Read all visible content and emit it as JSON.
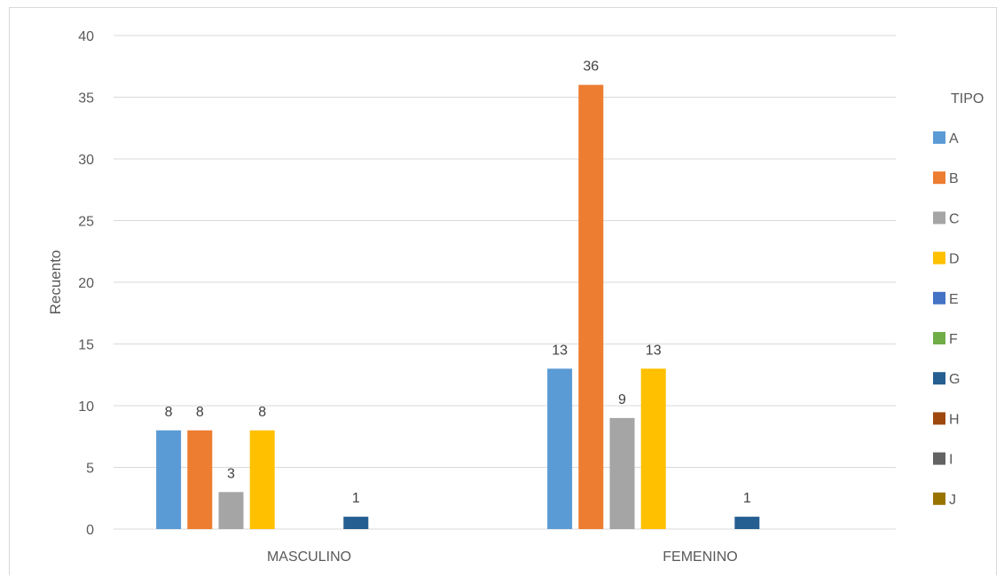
{
  "chart_data": {
    "type": "bar",
    "categories": [
      "MASCULINO",
      "FEMENINO"
    ],
    "ylabel": "Recuento",
    "xlabel": "",
    "ylim": [
      0,
      40
    ],
    "yticks": [
      0,
      5,
      10,
      15,
      20,
      25,
      30,
      35,
      40
    ],
    "grid": true,
    "legend": {
      "title": "TIPO",
      "placement": "right"
    },
    "series": [
      {
        "name": "A",
        "color": "#5b9bd5",
        "values": [
          8,
          13
        ]
      },
      {
        "name": "B",
        "color": "#ed7d31",
        "values": [
          8,
          36
        ]
      },
      {
        "name": "C",
        "color": "#a5a5a5",
        "values": [
          3,
          9
        ]
      },
      {
        "name": "D",
        "color": "#ffc000",
        "values": [
          8,
          13
        ]
      },
      {
        "name": "E",
        "color": "#4472c4",
        "values": [
          null,
          null
        ]
      },
      {
        "name": "F",
        "color": "#70ad47",
        "values": [
          null,
          null
        ]
      },
      {
        "name": "G",
        "color": "#255e91",
        "values": [
          1,
          1
        ]
      },
      {
        "name": "H",
        "color": "#9e480e",
        "values": [
          null,
          null
        ]
      },
      {
        "name": "I",
        "color": "#636363",
        "values": [
          null,
          null
        ]
      },
      {
        "name": "J",
        "color": "#997300",
        "values": [
          null,
          null
        ]
      }
    ]
  }
}
